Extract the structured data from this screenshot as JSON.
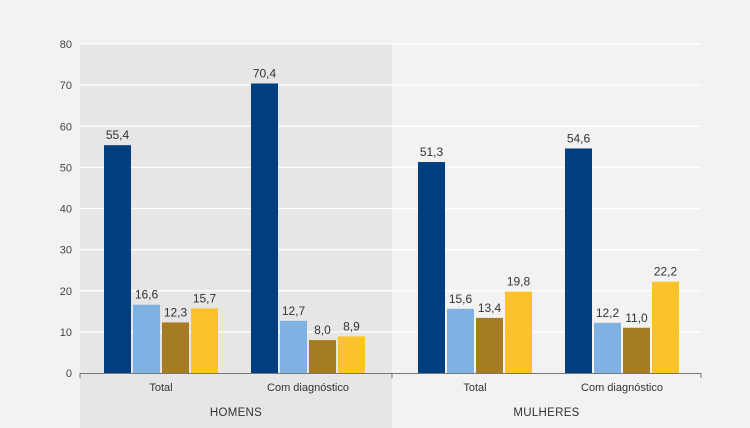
{
  "chart_data": {
    "type": "bar",
    "title": "",
    "xlabel": "",
    "ylabel": "",
    "ylim": [
      0,
      80
    ],
    "yticks": [
      "0",
      "10",
      "20",
      "30",
      "40",
      "50",
      "60",
      "70",
      "80"
    ],
    "grid": true,
    "legend": "none",
    "groups": [
      {
        "label": "HOMENS",
        "shaded": true,
        "categories": [
          {
            "label": "Total",
            "values": [
              55.4,
              16.6,
              12.3,
              15.7
            ],
            "value_labels": [
              "55,4",
              "16,6",
              "12,3",
              "15,7"
            ]
          },
          {
            "label": "Com diagnóstico",
            "values": [
              70.4,
              12.7,
              8.0,
              8.9
            ],
            "value_labels": [
              "70,4",
              "12,7",
              "8,0",
              "8,9"
            ]
          }
        ]
      },
      {
        "label": "MULHERES",
        "shaded": false,
        "categories": [
          {
            "label": "Total",
            "values": [
              51.3,
              15.6,
              13.4,
              19.8
            ],
            "value_labels": [
              "51,3",
              "15,6",
              "13,4",
              "19,8"
            ]
          },
          {
            "label": "Com diagnóstico",
            "values": [
              54.6,
              12.2,
              11.0,
              22.2
            ],
            "value_labels": [
              "54,6",
              "12,2",
              "11,0",
              "22,2"
            ]
          }
        ]
      }
    ],
    "series": [
      {
        "color": "#003f7f"
      },
      {
        "color": "#7fb2e3"
      },
      {
        "color": "#a67c22"
      },
      {
        "color": "#fcc22c"
      }
    ]
  },
  "colors": {
    "page_background": "#f2f2f1",
    "shaded_panel": "#e6e6e4",
    "gridline": "#ffffff",
    "axis": "#777777"
  }
}
